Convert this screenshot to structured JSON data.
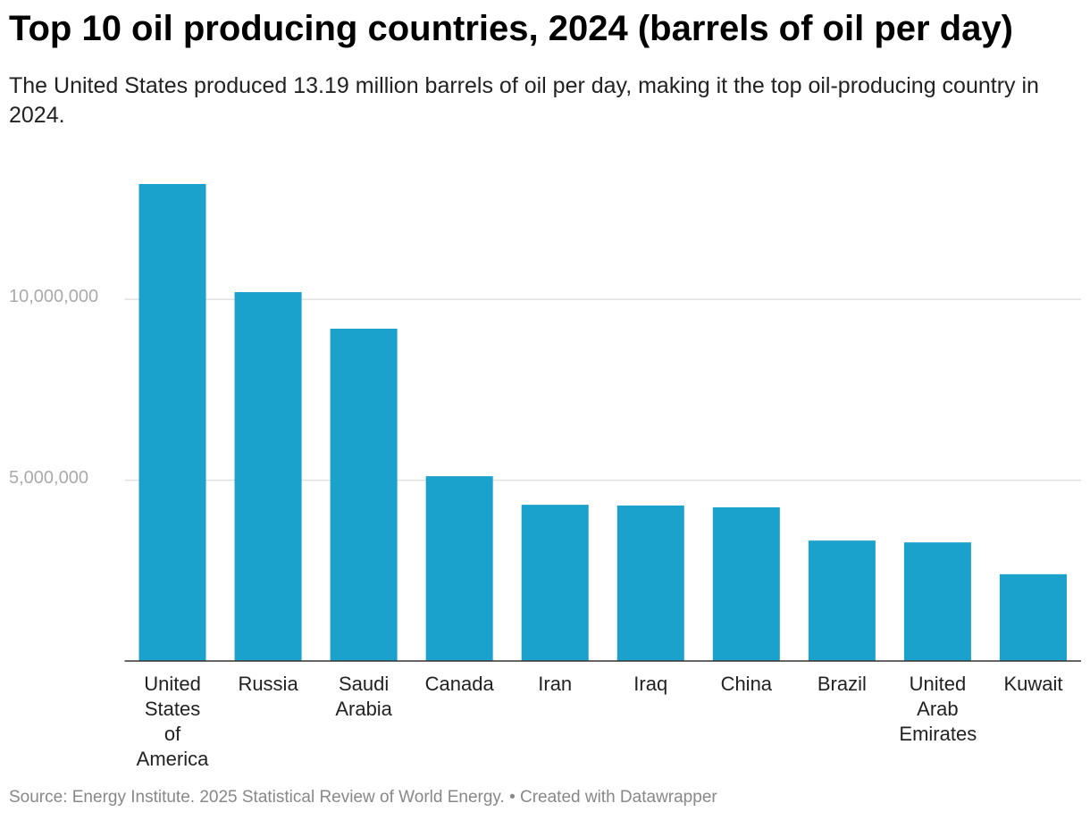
{
  "chart_data": {
    "type": "bar",
    "title": "Top 10 oil producing countries, 2024 (barrels of oil per day)",
    "subtitle": "The United States produced 13.19 million barrels of oil per day, making it the top oil-producing country in 2024.",
    "source": "Source: Energy Institute. 2025 Statistical Review of World Energy. • Created with Datawrapper",
    "categories": [
      "United States of America",
      "Russia",
      "Saudi Arabia",
      "Canada",
      "Iran",
      "Iraq",
      "China",
      "Brazil",
      "United Arab Emirates",
      "Kuwait"
    ],
    "values": [
      13190000,
      10200000,
      9190000,
      5110000,
      4320000,
      4300000,
      4250000,
      3330000,
      3280000,
      2400000
    ],
    "color": "#1aa1cc",
    "ylim": [
      0,
      13190000
    ],
    "yticks": [
      {
        "value": 5000000,
        "label": "5,000,000"
      },
      {
        "value": 10000000,
        "label": "10,000,000"
      }
    ],
    "grid": true
  }
}
